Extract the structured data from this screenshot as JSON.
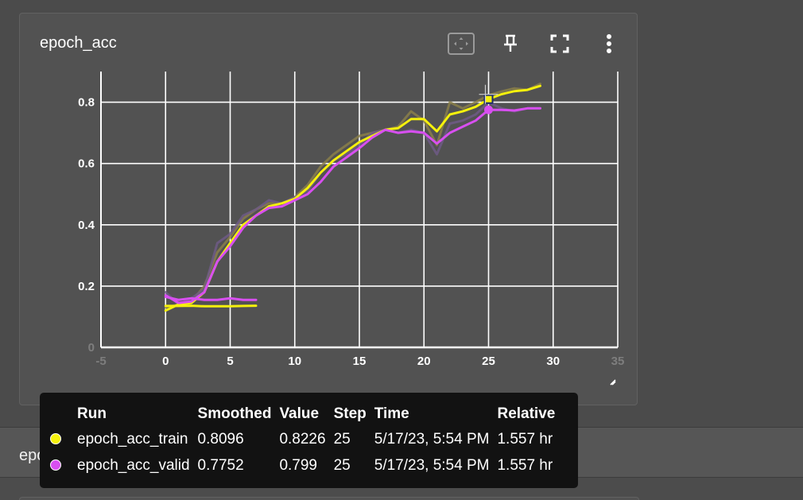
{
  "card": {
    "title": "epoch_acc",
    "toolbar": [
      {
        "icon": "fit-domain-icon"
      },
      {
        "icon": "pin-icon"
      },
      {
        "icon": "fullscreen-icon"
      },
      {
        "icon": "more-vert-icon"
      }
    ]
  },
  "next_card": {
    "title": "epoch_avg_loss"
  },
  "colors": {
    "train": "#f5f10c",
    "valid": "#d84ff0",
    "train_raw": "#8a7f4a",
    "valid_raw": "#6f5a86",
    "grid": "#ffffff",
    "background": "#525252"
  },
  "chart_data": {
    "type": "line",
    "title": "",
    "xlabel": "",
    "ylabel": "",
    "xlim": [
      -5,
      35
    ],
    "ylim": [
      0,
      0.9
    ],
    "grid": true,
    "x_ticks": [
      "-5",
      "0",
      "5",
      "10",
      "15",
      "20",
      "25",
      "30",
      "35"
    ],
    "y_ticks": [
      "0",
      "0.2",
      "0.4",
      "0.6",
      "0.8"
    ],
    "series": [
      {
        "name": "epoch_acc_train",
        "role": "smoothed",
        "x": [
          0,
          1,
          2,
          3,
          4,
          5,
          6,
          7,
          8,
          9,
          10,
          11,
          12,
          13,
          14,
          15,
          16,
          17,
          18,
          19,
          20,
          21,
          22,
          23,
          24,
          25,
          26,
          27,
          28,
          29
        ],
        "y": [
          0.12,
          0.14,
          0.145,
          0.18,
          0.28,
          0.34,
          0.4,
          0.43,
          0.46,
          0.47,
          0.485,
          0.52,
          0.57,
          0.61,
          0.64,
          0.67,
          0.69,
          0.71,
          0.715,
          0.745,
          0.745,
          0.705,
          0.76,
          0.77,
          0.785,
          0.81,
          0.826,
          0.836,
          0.84,
          0.853
        ]
      },
      {
        "name": "epoch_acc_train",
        "role": "raw",
        "x": [
          0,
          1,
          2,
          3,
          4,
          5,
          6,
          7,
          8,
          9,
          10,
          11,
          12,
          13,
          14,
          15,
          16,
          17,
          18,
          19,
          20,
          21,
          22,
          23,
          24,
          25,
          26,
          27,
          28,
          29
        ],
        "y": [
          0.13,
          0.14,
          0.15,
          0.2,
          0.31,
          0.36,
          0.42,
          0.45,
          0.47,
          0.47,
          0.49,
          0.53,
          0.59,
          0.63,
          0.66,
          0.69,
          0.7,
          0.71,
          0.72,
          0.77,
          0.74,
          0.66,
          0.8,
          0.78,
          0.8,
          0.8226,
          0.835,
          0.845,
          0.84,
          0.86
        ]
      },
      {
        "name": "epoch_acc_train",
        "role": "smoothed",
        "x": [
          0,
          1,
          2,
          3,
          4,
          5,
          6,
          7
        ],
        "y": [
          0.135,
          0.135,
          0.136,
          0.134,
          0.134,
          0.134,
          0.135,
          0.136
        ]
      },
      {
        "name": "epoch_acc_valid",
        "role": "smoothed",
        "x": [
          0,
          1,
          2,
          3,
          4,
          5,
          6,
          7,
          8,
          9,
          10,
          11,
          12,
          13,
          14,
          15,
          16,
          17,
          18,
          19,
          20,
          21,
          22,
          23,
          24,
          25,
          26,
          27,
          28,
          29
        ],
        "y": [
          0.17,
          0.145,
          0.15,
          0.18,
          0.28,
          0.33,
          0.39,
          0.43,
          0.455,
          0.46,
          0.48,
          0.5,
          0.54,
          0.59,
          0.62,
          0.65,
          0.685,
          0.71,
          0.7,
          0.705,
          0.7,
          0.665,
          0.7,
          0.72,
          0.74,
          0.7752,
          0.775,
          0.773,
          0.78,
          0.78
        ]
      },
      {
        "name": "epoch_acc_valid",
        "role": "raw",
        "x": [
          0,
          1,
          2,
          3,
          4,
          5,
          6,
          7,
          8,
          9,
          10,
          11,
          12,
          13,
          14,
          15,
          16,
          17,
          18,
          19,
          20,
          21,
          22,
          23,
          24,
          25,
          26,
          27,
          28,
          29
        ],
        "y": [
          0.18,
          0.14,
          0.16,
          0.19,
          0.34,
          0.37,
          0.43,
          0.45,
          0.48,
          0.47,
          0.49,
          0.51,
          0.57,
          0.61,
          0.63,
          0.66,
          0.7,
          0.71,
          0.7,
          0.71,
          0.7,
          0.63,
          0.73,
          0.74,
          0.76,
          0.799,
          0.78,
          0.77,
          0.78,
          0.78
        ]
      },
      {
        "name": "epoch_acc_valid",
        "role": "smoothed",
        "x": [
          0,
          1,
          2,
          3,
          4,
          5,
          6,
          7
        ],
        "y": [
          0.165,
          0.155,
          0.16,
          0.155,
          0.155,
          0.16,
          0.155,
          0.155
        ]
      }
    ],
    "hover_step": 25
  },
  "tooltip": {
    "headers": {
      "run": "Run",
      "smoothed": "Smoothed",
      "value": "Value",
      "step": "Step",
      "time": "Time",
      "relative": "Relative"
    },
    "rows": [
      {
        "color": "#f5f10c",
        "run": "epoch_acc_train",
        "smoothed": "0.8096",
        "value": "0.8226",
        "step": "25",
        "time": "5/17/23, 5:54 PM",
        "relative": "1.557 hr"
      },
      {
        "color": "#d84ff0",
        "run": "epoch_acc_valid",
        "smoothed": "0.7752",
        "value": "0.799",
        "step": "25",
        "time": "5/17/23, 5:54 PM",
        "relative": "1.557 hr"
      }
    ]
  }
}
